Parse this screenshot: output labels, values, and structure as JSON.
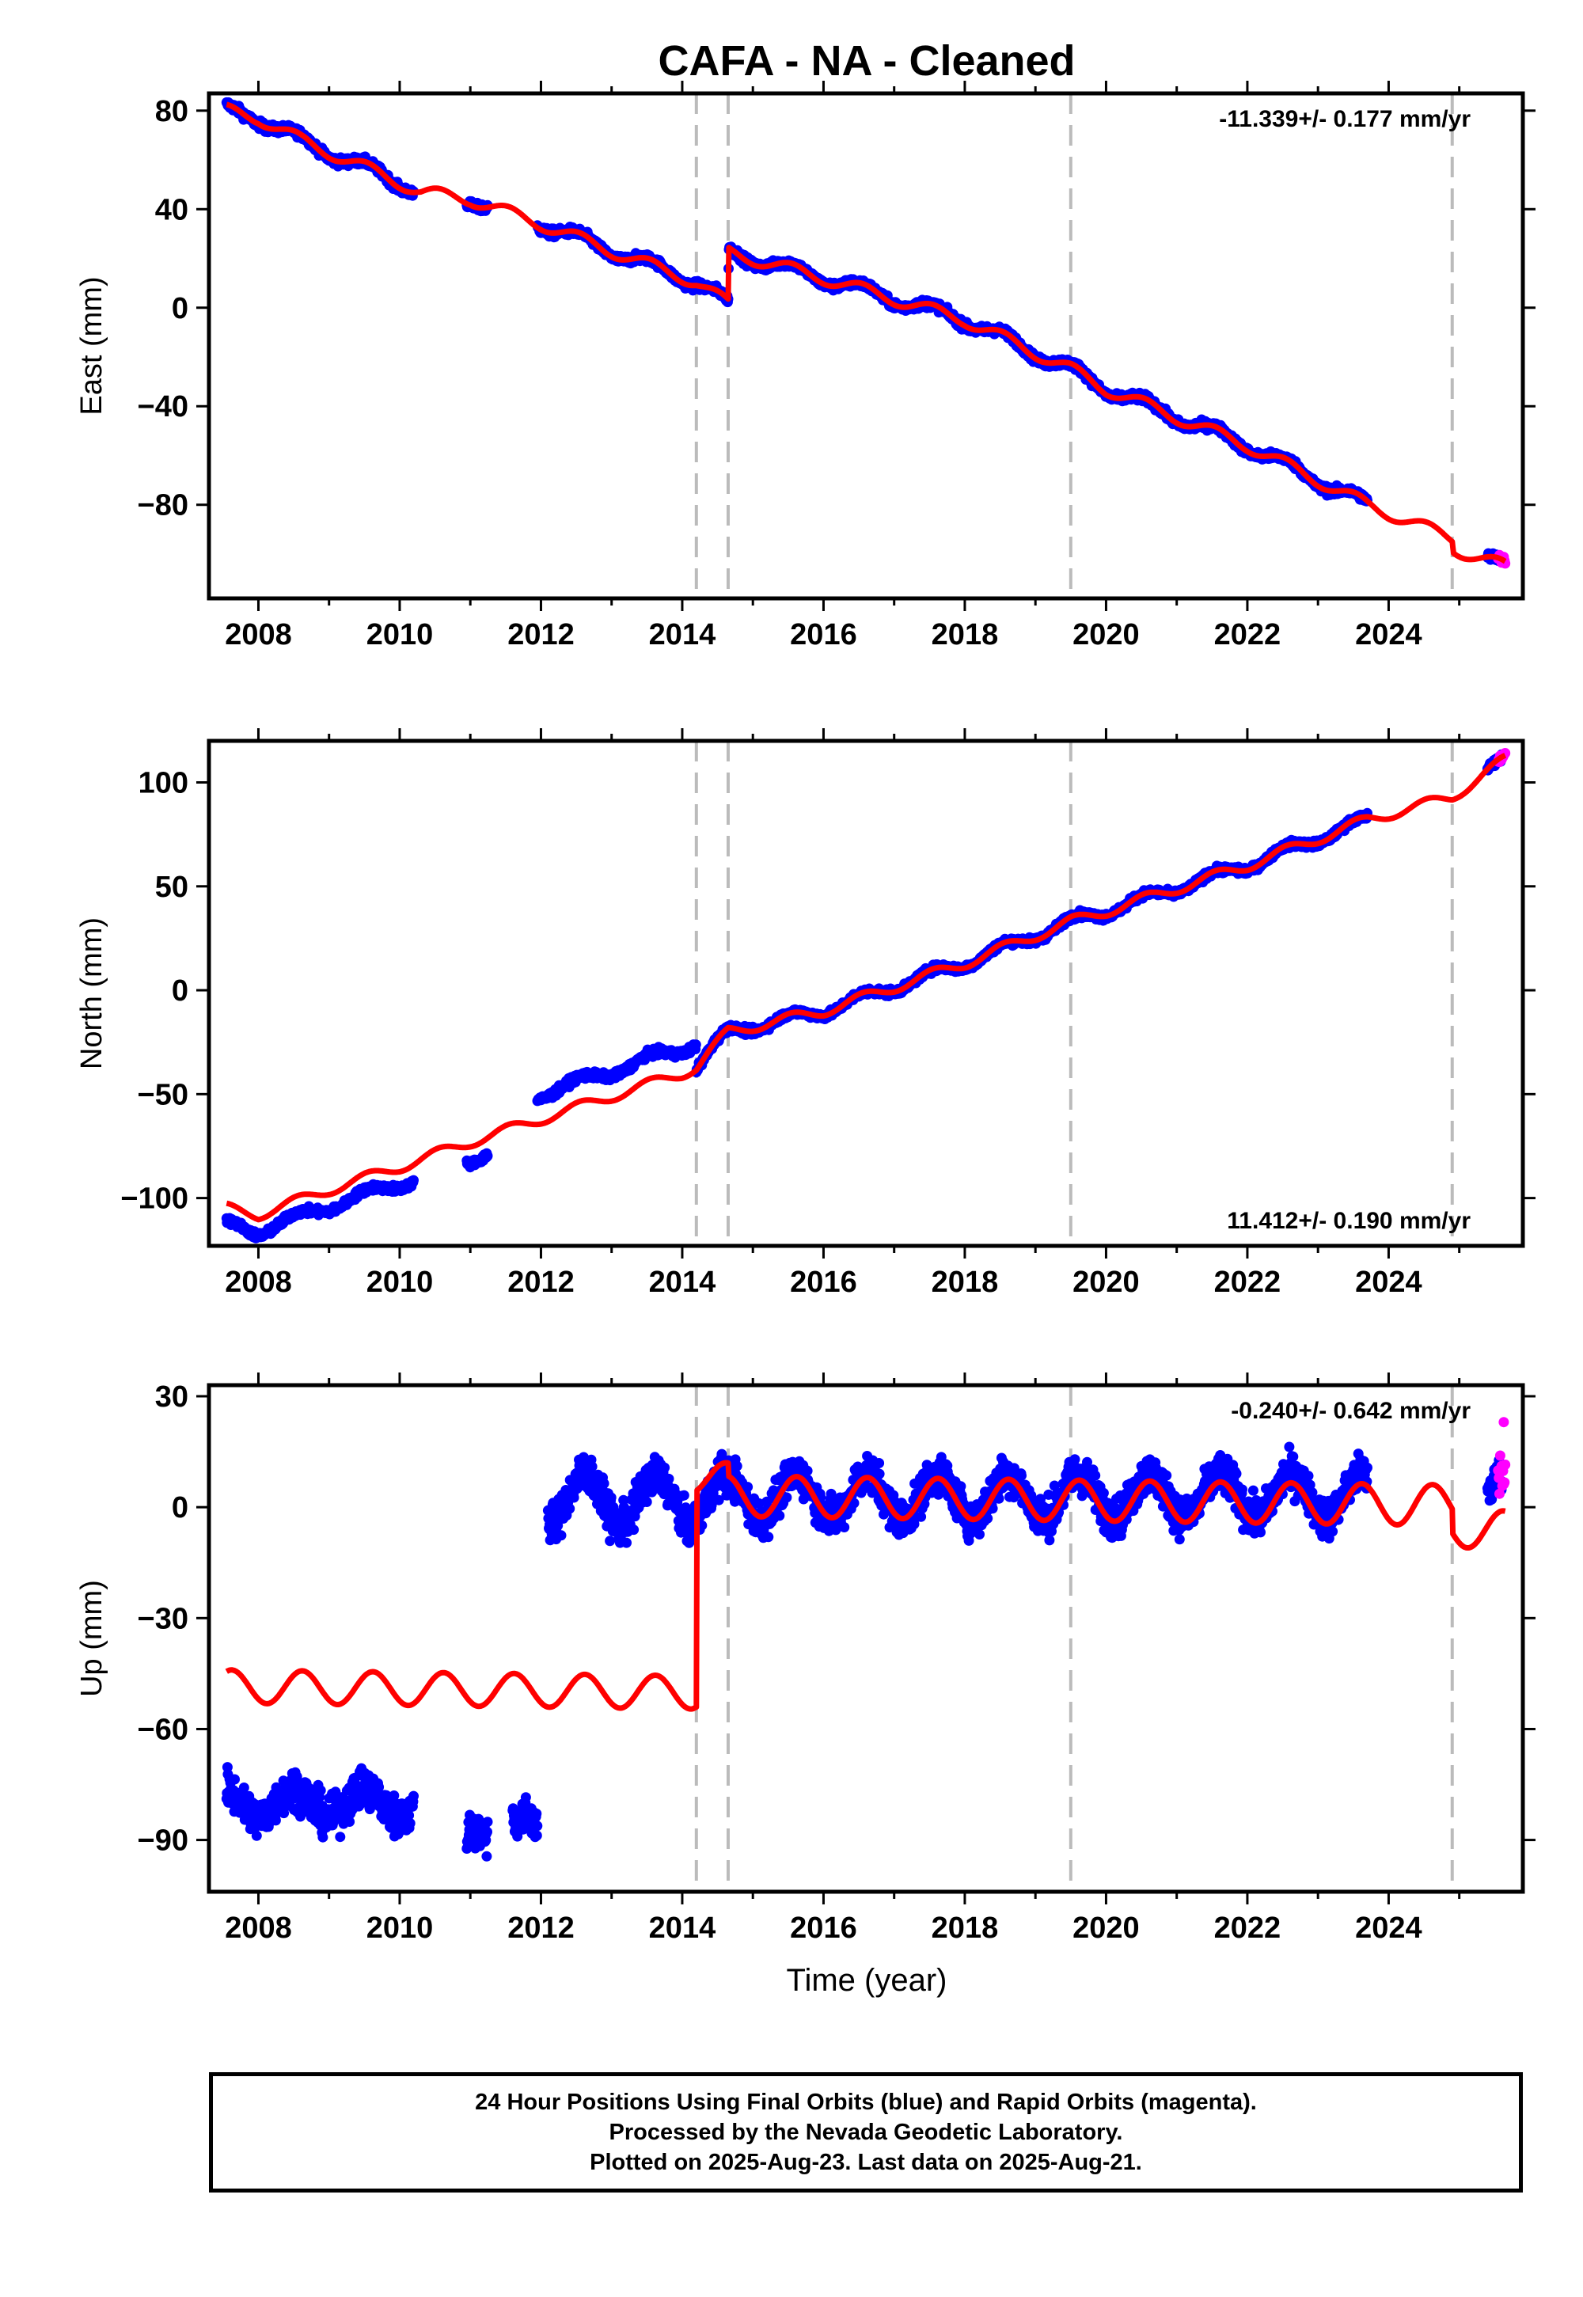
{
  "title": "CAFA  - NA - Cleaned",
  "xlabel": "Time (year)",
  "footer": {
    "line1": "24 Hour Positions Using Final Orbits (blue) and Rapid Orbits (magenta).",
    "line2": "Processed by the Nevada Geodetic Laboratory.",
    "line3": "Plotted on 2025-Aug-23. Last data on 2025-Aug-21."
  },
  "colors": {
    "final": "#0000ff",
    "rapid": "#ff00ff",
    "model": "#ff0000",
    "dashed": "#bbbbbb"
  },
  "chart_data": [
    {
      "type": "scatter",
      "panel": "east",
      "ylabel": "East (mm)",
      "rate_text": "-11.339+/- 0.177 mm/yr",
      "rate_position": "top-right",
      "xlim": [
        2007.3,
        2025.9
      ],
      "ylim": [
        -118,
        87
      ],
      "yticks": [
        -80,
        -40,
        0,
        40,
        80
      ],
      "xticks": [
        2008,
        2010,
        2012,
        2014,
        2016,
        2018,
        2020,
        2022,
        2024
      ],
      "equipment_changes": [
        2014.2,
        2014.65,
        2019.5,
        2024.9
      ],
      "final_data_ranges": [
        [
          2007.55,
          2010.2
        ],
        [
          2010.95,
          2011.25
        ],
        [
          2011.95,
          2023.7
        ],
        [
          2025.4,
          2025.6
        ]
      ],
      "rapid_data_range": [
        2025.55,
        2025.65
      ],
      "model_x": [
        2007.55,
        2008.0,
        2008.6,
        2009.5,
        2010.3,
        2011.0,
        2012.0,
        2013.0,
        2014.0,
        2014.2,
        2014.65,
        2014.66,
        2016.0,
        2018.0,
        2019.5,
        2020.0,
        2022.0,
        2023.7,
        2024.4,
        2024.9,
        2024.92,
        2025.65
      ],
      "model_y": [
        80.0,
        77.0,
        68.0,
        57.0,
        47.0,
        44.0,
        34.0,
        23.0,
        12.5,
        10.5,
        1.5,
        22.5,
        12.0,
        -5.0,
        -25.0,
        -33.0,
        -56.0,
        -80.0,
        -88.0,
        -93.5,
        -98.0,
        -105.0
      ]
    },
    {
      "type": "scatter",
      "panel": "north",
      "ylabel": "North (mm)",
      "rate_text": "11.412+/- 0.190 mm/yr",
      "rate_position": "bottom-right",
      "xlim": [
        2007.3,
        2025.9
      ],
      "ylim": [
        -123,
        120
      ],
      "yticks": [
        -100,
        -50,
        0,
        50,
        100
      ],
      "xticks": [
        2008,
        2010,
        2012,
        2014,
        2016,
        2018,
        2020,
        2022,
        2024
      ],
      "equipment_changes": [
        2014.2,
        2014.65,
        2019.5,
        2024.9
      ],
      "final_data_ranges": [
        [
          2007.55,
          2010.2
        ],
        [
          2010.95,
          2011.25
        ],
        [
          2011.95,
          2023.7
        ],
        [
          2025.4,
          2025.6
        ]
      ],
      "rapid_data_range": [
        2025.55,
        2025.65
      ],
      "model_x": [
        2007.55,
        2008.0,
        2009.0,
        2010.0,
        2011.0,
        2012.0,
        2013.0,
        2014.0,
        2014.2,
        2014.65,
        2016.0,
        2018.0,
        2019.5,
        2020.0,
        2022.0,
        2023.7,
        2024.9,
        2025.65
      ],
      "model_y": [
        -105.0,
        -108.0,
        -96.0,
        -85.0,
        -73.0,
        -62.0,
        -51.0,
        -40.0,
        -37.0,
        -20.0,
        -10.0,
        13.0,
        33.0,
        38.0,
        60.0,
        82.0,
        93.0,
        111.0
      ],
      "data_offset_before_2014_2": {
        "before_2011_9": -8,
        "between_2011_9_and_2014_2": 12
      }
    },
    {
      "type": "scatter",
      "panel": "up",
      "ylabel": "Up (mm)",
      "rate_text": "-0.240+/- 0.642 mm/yr",
      "rate_position": "top-right",
      "xlim": [
        2007.3,
        2025.9
      ],
      "ylim": [
        -104,
        33
      ],
      "yticks": [
        -90,
        -60,
        -30,
        0,
        30
      ],
      "xticks": [
        2008,
        2010,
        2012,
        2014,
        2016,
        2018,
        2020,
        2022,
        2024
      ],
      "equipment_changes": [
        2014.2,
        2014.65,
        2019.5,
        2024.9
      ],
      "final_data_ranges": [
        [
          2007.55,
          2010.2
        ],
        [
          2010.95,
          2011.25
        ],
        [
          2011.6,
          2011.95
        ],
        [
          2012.1,
          2023.7
        ],
        [
          2025.4,
          2025.6
        ]
      ],
      "rapid_data_range": [
        2025.55,
        2025.65
      ],
      "model_segments": [
        {
          "x_range": [
            2007.55,
            2014.2
          ],
          "mean": -48.5,
          "amplitude": 4.5,
          "slope": -0.24
        },
        {
          "x_range": [
            2014.2,
            2014.65
          ],
          "mean": 8.0,
          "amplitude": 4.0,
          "slope": 0
        },
        {
          "x_range": [
            2014.65,
            2024.9
          ],
          "mean": 3.0,
          "amplitude": 5.5,
          "slope": -0.24
        },
        {
          "x_range": [
            2024.9,
            2025.65
          ],
          "mean": -6.0,
          "amplitude": 5.0,
          "slope": 0
        }
      ],
      "data_level": {
        "2007.55-2010.2": -80,
        "2010.95-2011.95": -87,
        "2012.1-2014.2": 2,
        "2014.2-2024": 3
      },
      "outlier_rapid": {
        "x": 2025.63,
        "y": 23
      }
    }
  ]
}
